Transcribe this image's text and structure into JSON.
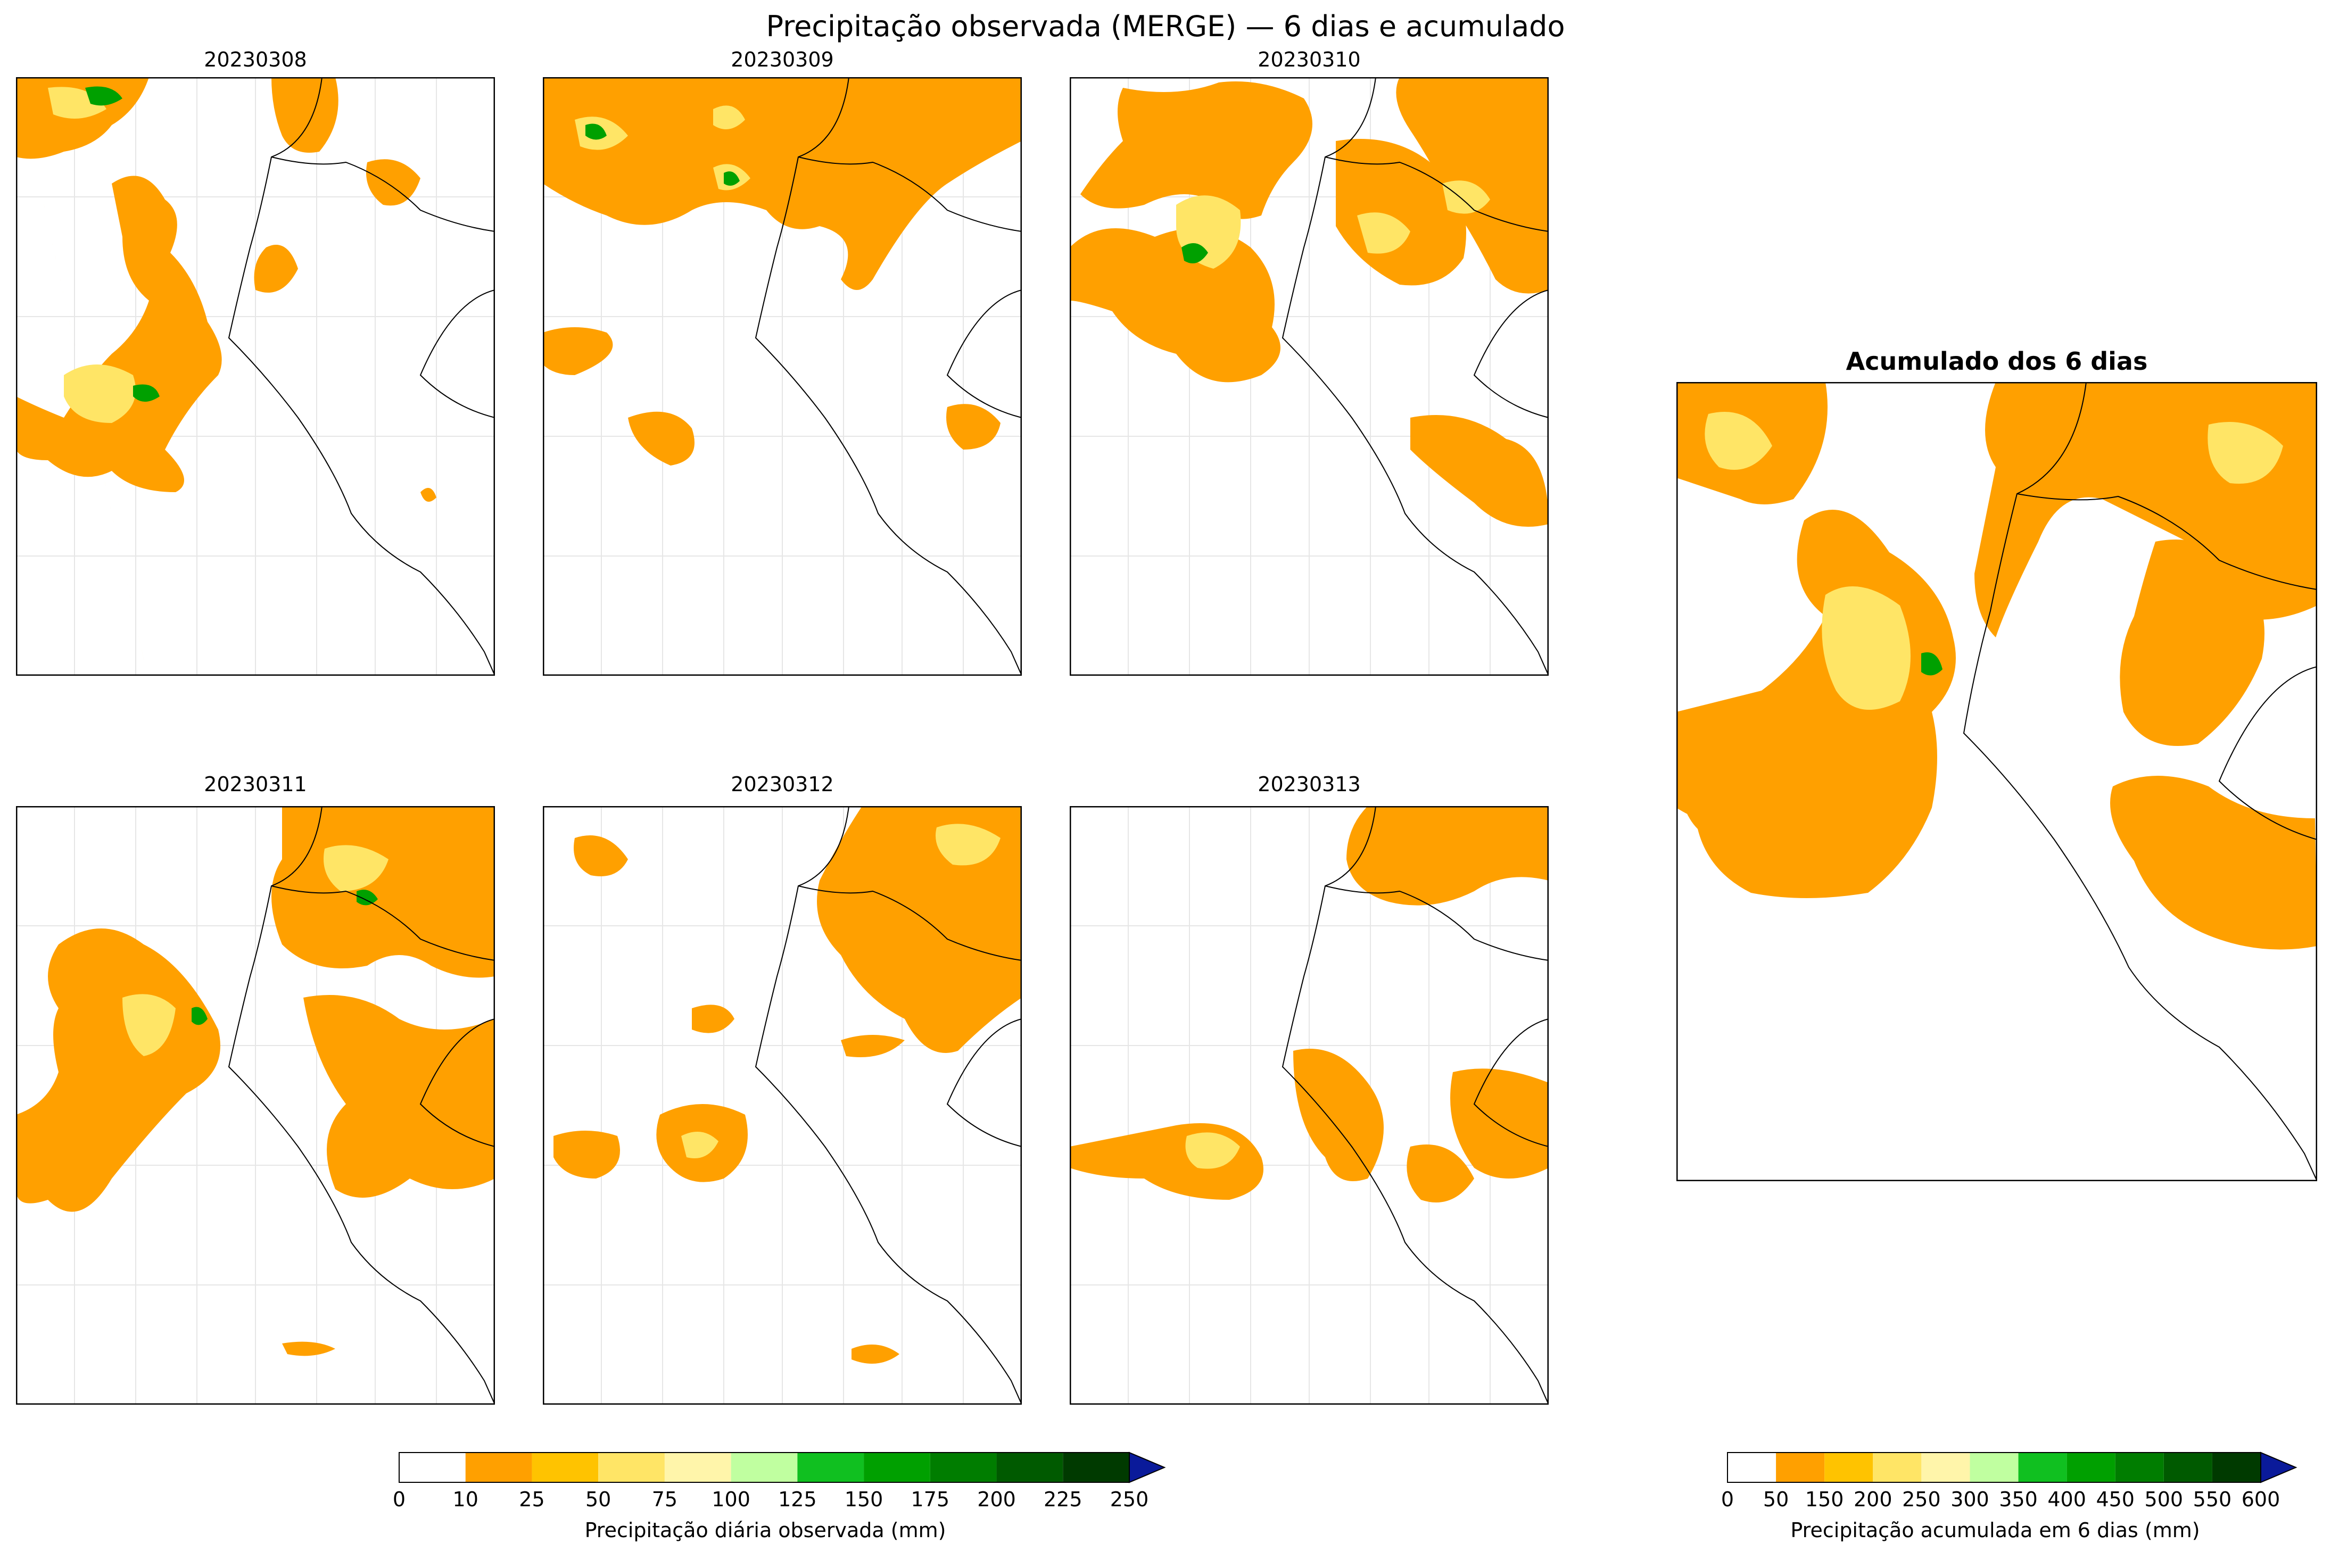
{
  "figure": {
    "suptitle": "Precipitação observada (MERGE) — 6 dias e acumulado"
  },
  "panels": [
    {
      "title": "20230308"
    },
    {
      "title": "20230309"
    },
    {
      "title": "20230310"
    },
    {
      "title": "20230311"
    },
    {
      "title": "20230312"
    },
    {
      "title": "20230313"
    }
  ],
  "accum_panel": {
    "title": "Acumulado dos 6 dias"
  },
  "daily_colorbar": {
    "label": "Precipitação diária observada (mm)",
    "ticks": [
      "0",
      "10",
      "25",
      "50",
      "75",
      "100",
      "125",
      "150",
      "175",
      "200",
      "225",
      "250"
    ],
    "colors": [
      "#ffffff",
      "#ffa000",
      "#ffc300",
      "#ffe566",
      "#fff5aa",
      "#c0ffa0",
      "#10c020",
      "#00a000",
      "#007d00",
      "#005a00",
      "#003a00"
    ],
    "extend_color": "#0a1a9a"
  },
  "accum_colorbar": {
    "label": "Precipitação acumulada em 6 dias (mm)",
    "ticks": [
      "0",
      "50",
      "150",
      "200",
      "250",
      "300",
      "350",
      "400",
      "450",
      "500",
      "550",
      "600"
    ],
    "colors": [
      "#ffffff",
      "#ffa000",
      "#ffc300",
      "#ffe566",
      "#fff5aa",
      "#c0ffa0",
      "#10c020",
      "#00a000",
      "#007d00",
      "#005a00",
      "#003a00"
    ],
    "extend_color": "#0a1a9a"
  }
}
